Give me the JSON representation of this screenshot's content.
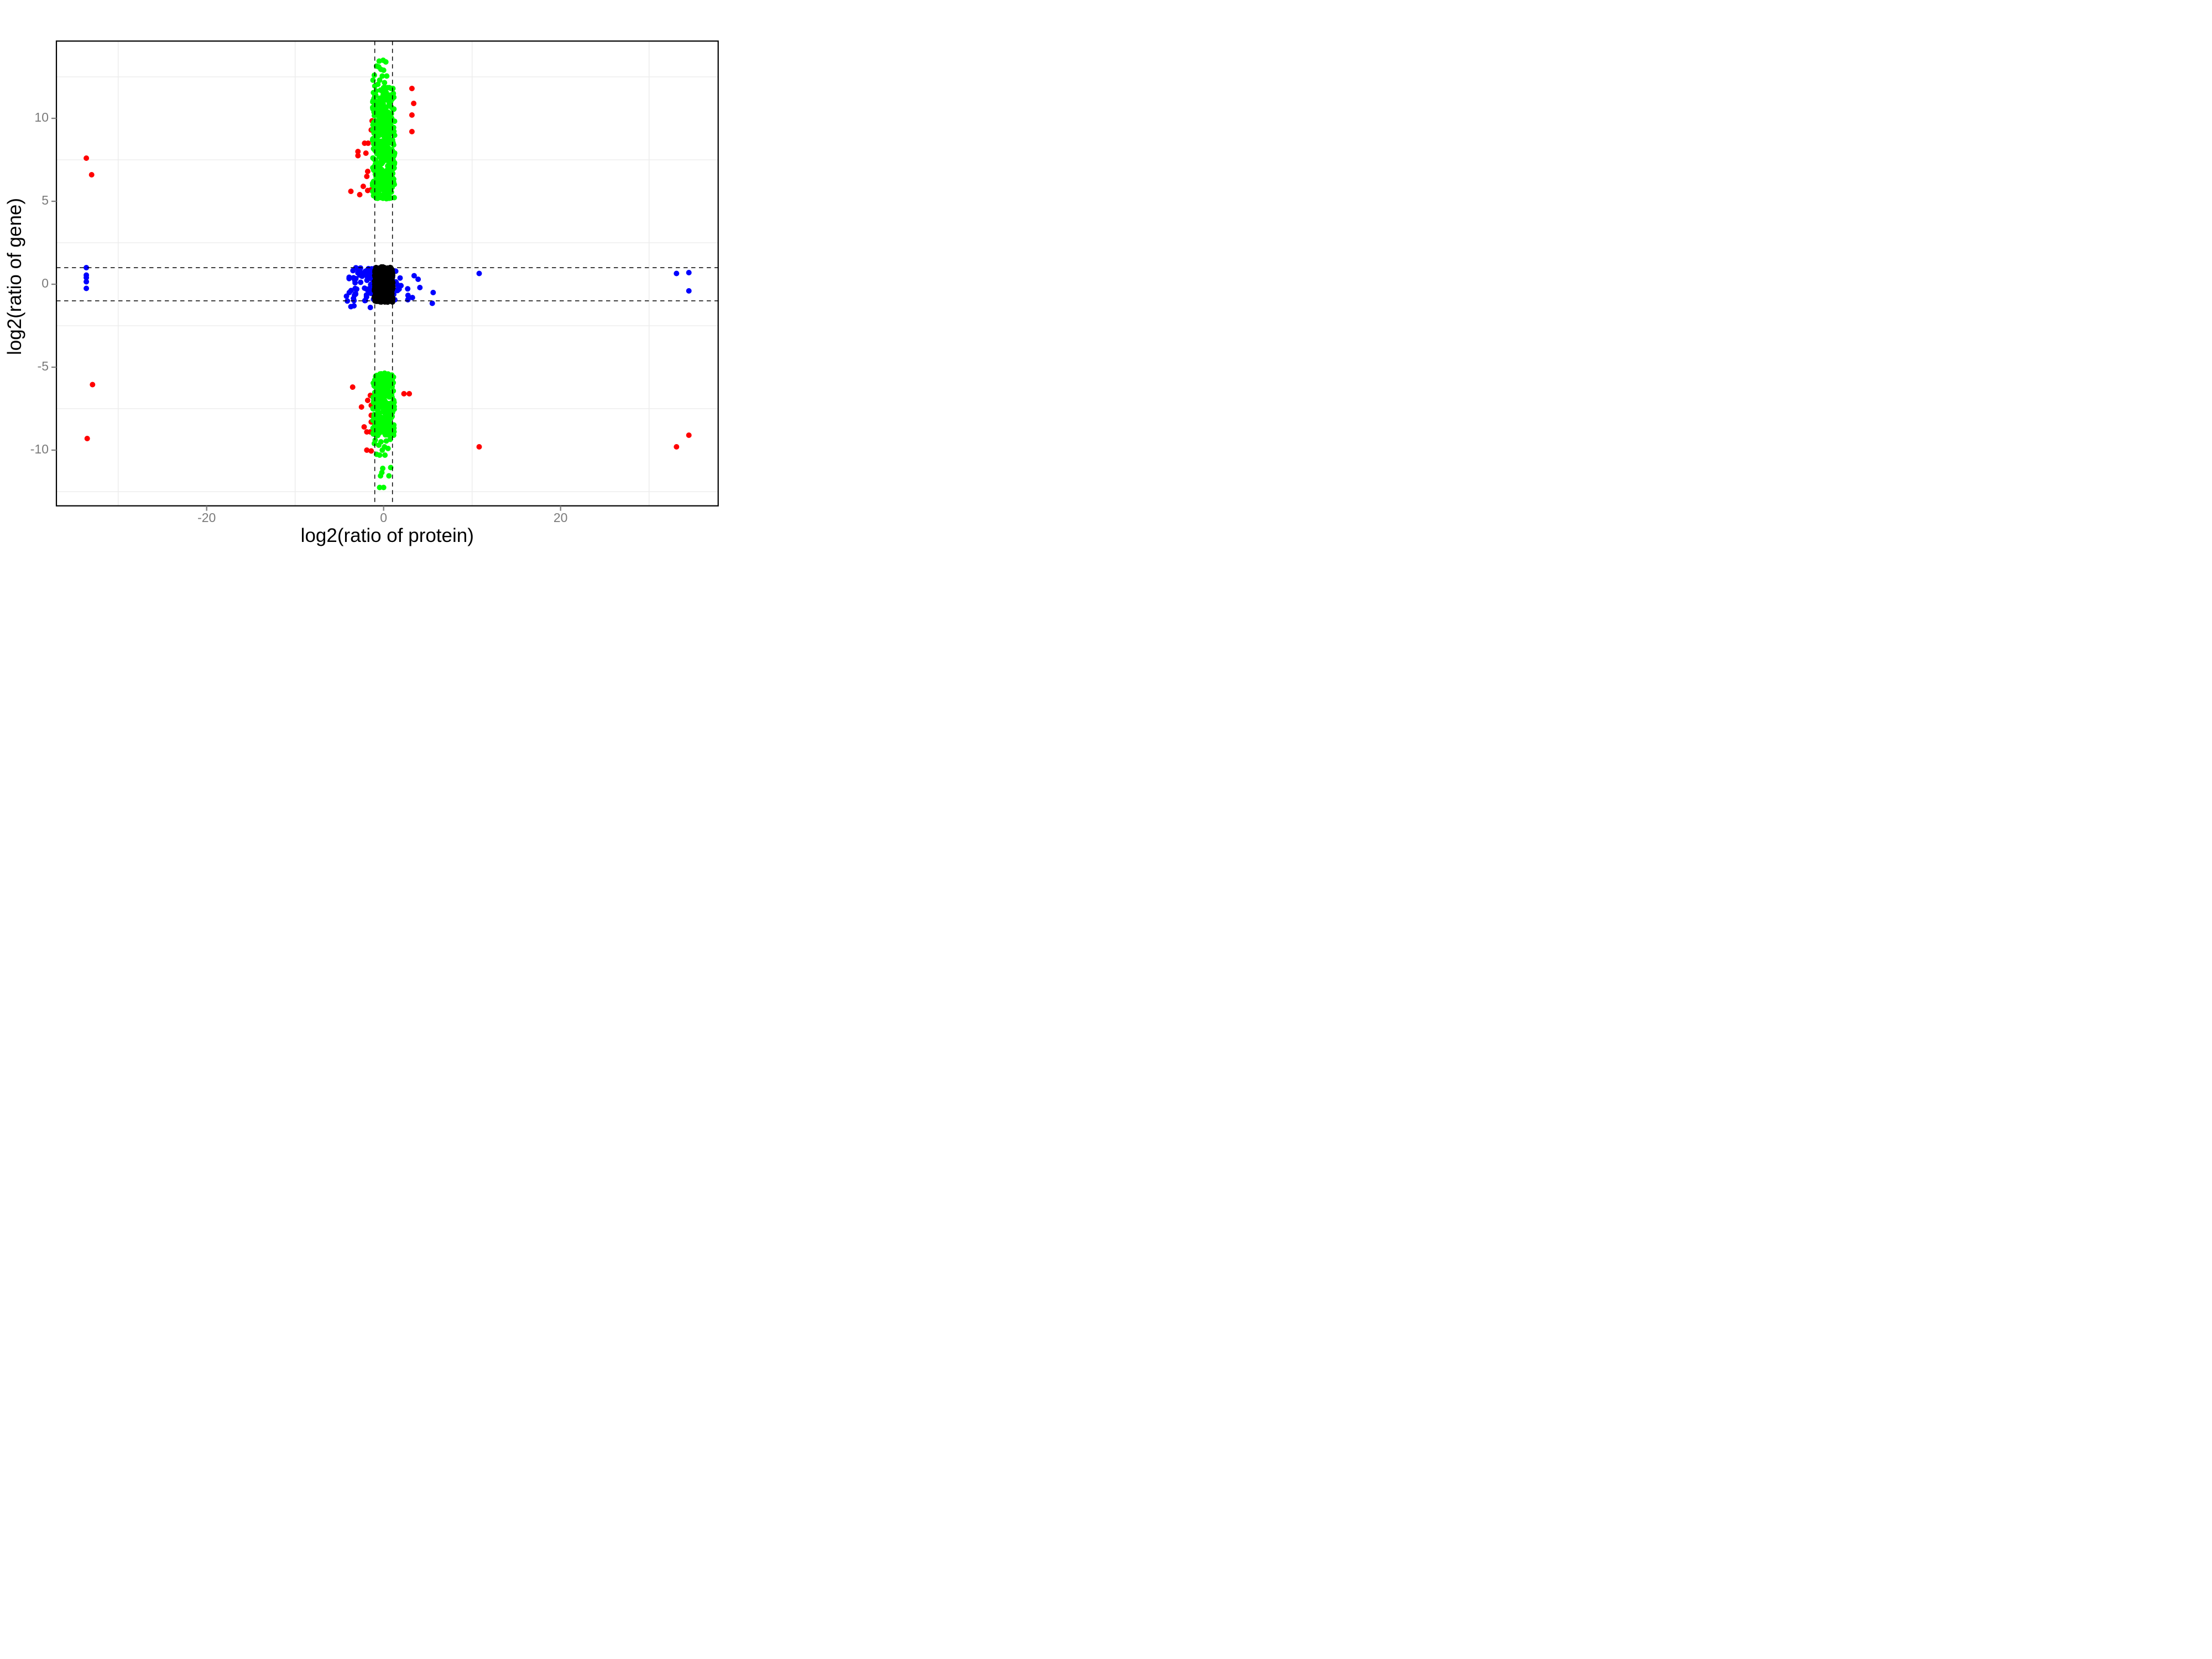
{
  "figure": {
    "background": "#ffffff"
  },
  "axes": {
    "x": {
      "label": "log2(ratio of protein)",
      "tick_values": [
        -20,
        0,
        20
      ],
      "tick_labels": [
        "-20",
        "0",
        "20"
      ],
      "minor_gridlines": [
        -30,
        -10,
        10,
        30
      ],
      "range": [
        -37.0,
        37.9
      ]
    },
    "y": {
      "label": "log2(ratio of gene)",
      "tick_values": [
        10,
        5,
        0,
        -5,
        -10
      ],
      "tick_labels": [
        "10",
        "5",
        "0",
        "-5",
        "-10"
      ],
      "minor_gridlines": [
        12.5,
        7.5,
        2.5,
        -2.5,
        -7.5,
        -12.5
      ],
      "range": [
        -13.35,
        14.65
      ]
    }
  },
  "styles": {
    "panel_border_color": "#000000",
    "gridline_color": "#ededed",
    "tick_color": "#808080",
    "tick_label_color": "#7a7a7a",
    "reference_line_color": "#000000",
    "point_radius": 5,
    "colors": {
      "up_gene": "#00ff00",
      "outlier": "#ff0000",
      "protein_change": "#0000ff",
      "no_change": "#000000"
    }
  },
  "reference_lines": {
    "vertical_x": [
      -1,
      1
    ],
    "horizontal_y": [
      -1,
      1
    ],
    "style": "dashed"
  },
  "chart_data": {
    "type": "scatter",
    "title": "",
    "xlabel": "log2(ratio of protein)",
    "ylabel": "log2(ratio of gene)",
    "xlim": [
      -37.0,
      37.9
    ],
    "ylim": [
      -13.35,
      14.65
    ],
    "grid": "minor-only",
    "legend": "none",
    "series": [
      {
        "name": "red-outliers",
        "color": "#ff0000",
        "z": 1,
        "points": [
          [
            -33.6,
            7.6
          ],
          [
            -33.0,
            6.6
          ],
          [
            -32.9,
            -6.05
          ],
          [
            -33.5,
            -9.3
          ],
          [
            -1.3,
            9.85
          ],
          [
            -1.4,
            9.3
          ],
          [
            -2.15,
            8.5
          ],
          [
            -1.75,
            8.5
          ],
          [
            -2.9,
            8.0
          ],
          [
            -2.9,
            7.75
          ],
          [
            -2.0,
            7.9
          ],
          [
            -1.8,
            6.8
          ],
          [
            -1.9,
            6.5
          ],
          [
            -2.3,
            5.9
          ],
          [
            -1.8,
            5.65
          ],
          [
            -1.4,
            5.7
          ],
          [
            -2.7,
            5.4
          ],
          [
            -3.7,
            5.6
          ],
          [
            3.2,
            11.8
          ],
          [
            3.4,
            10.9
          ],
          [
            3.2,
            10.2
          ],
          [
            3.2,
            9.2
          ],
          [
            -3.5,
            -6.2
          ],
          [
            -1.5,
            -6.7
          ],
          [
            -1.8,
            -7.0
          ],
          [
            -2.5,
            -7.4
          ],
          [
            -1.4,
            -7.3
          ],
          [
            -1.4,
            -7.9
          ],
          [
            -1.4,
            -8.3
          ],
          [
            -2.2,
            -8.6
          ],
          [
            -1.9,
            -8.9
          ],
          [
            -1.5,
            -8.9
          ],
          [
            -1.9,
            -10.0
          ],
          [
            -1.4,
            -10.05
          ],
          [
            2.3,
            -6.6
          ],
          [
            2.9,
            -6.6
          ],
          [
            10.8,
            -9.8
          ],
          [
            34.5,
            -9.1
          ],
          [
            33.1,
            -9.8
          ]
        ]
      },
      {
        "name": "green-upper-tail",
        "color": "#00ff00",
        "z": 2,
        "points": [
          [
            -0.05,
            13.5
          ],
          [
            -0.5,
            13.45
          ],
          [
            0.25,
            13.4
          ],
          [
            -0.8,
            13.15
          ],
          [
            -0.55,
            13.1
          ],
          [
            -0.3,
            12.95
          ],
          [
            0.0,
            12.9
          ],
          [
            -1.05,
            12.6
          ],
          [
            -0.15,
            12.55
          ],
          [
            0.35,
            12.55
          ],
          [
            -1.2,
            12.3
          ],
          [
            -0.45,
            12.3
          ],
          [
            0.1,
            12.15
          ],
          [
            -0.65,
            12.05
          ],
          [
            -1.0,
            11.95
          ],
          [
            0.0,
            11.85
          ],
          [
            0.2,
            11.85
          ],
          [
            0.45,
            11.85
          ],
          [
            0.65,
            11.85
          ],
          [
            0.85,
            11.8
          ],
          [
            1.05,
            11.8
          ],
          [
            -0.35,
            11.7
          ],
          [
            -0.85,
            11.65
          ],
          [
            -1.15,
            11.55
          ],
          [
            1.1,
            11.5
          ],
          [
            0.75,
            11.4
          ],
          [
            0.3,
            11.55
          ],
          [
            -0.1,
            11.6
          ]
        ]
      },
      {
        "name": "green-lower-tail",
        "color": "#00ff00",
        "z": 2,
        "points": [
          [
            -0.95,
            -9.4
          ],
          [
            0.75,
            -9.35
          ],
          [
            -0.3,
            -9.5
          ],
          [
            0.3,
            -9.45
          ],
          [
            -1.05,
            -9.6
          ],
          [
            -0.55,
            -9.7
          ],
          [
            0.1,
            -9.8
          ],
          [
            0.5,
            -9.9
          ],
          [
            -0.15,
            -10.0
          ],
          [
            -0.8,
            -10.25
          ],
          [
            -0.45,
            -10.3
          ],
          [
            0.15,
            -10.3
          ],
          [
            -0.1,
            -11.1
          ],
          [
            0.8,
            -11.05
          ],
          [
            -0.2,
            -11.35
          ],
          [
            -0.35,
            -11.55
          ],
          [
            0.6,
            -11.55
          ],
          [
            -0.45,
            -12.25
          ],
          [
            0.0,
            -12.25
          ]
        ]
      },
      {
        "name": "blue-outliers",
        "color": "#0000ff",
        "z": 3,
        "points": [
          [
            -33.6,
            1.0
          ],
          [
            -33.6,
            0.55
          ],
          [
            -33.6,
            0.4
          ],
          [
            -33.6,
            0.15
          ],
          [
            -33.6,
            -0.25
          ],
          [
            10.8,
            0.65
          ],
          [
            33.1,
            0.65
          ],
          [
            34.5,
            0.7
          ],
          [
            34.5,
            -0.4
          ],
          [
            5.6,
            -0.5
          ],
          [
            5.5,
            -1.15
          ],
          [
            -3.7,
            -1.35
          ],
          [
            -3.35,
            -1.3
          ],
          [
            -1.5,
            -1.4
          ],
          [
            3.9,
            0.3
          ],
          [
            4.1,
            -0.2
          ]
        ]
      }
    ],
    "clusters": [
      {
        "name": "green-upper-band",
        "color": "#00ff00",
        "z": 2,
        "x_range": [
          -1.25,
          1.25
        ],
        "y_range": [
          5.15,
          11.4
        ],
        "n": 420,
        "seed": 11,
        "x_skew": "none"
      },
      {
        "name": "green-lower-band",
        "color": "#00ff00",
        "z": 2,
        "x_range": [
          -1.2,
          1.2
        ],
        "y_range": [
          -9.15,
          -5.35
        ],
        "n": 280,
        "seed": 22,
        "x_skew": "none"
      },
      {
        "name": "blue-left-wing",
        "color": "#0000ff",
        "z": 3,
        "x_range": [
          -4.2,
          -1.0
        ],
        "y_range": [
          -1.02,
          1.0
        ],
        "n": 82,
        "seed": 33,
        "x_skew": "right"
      },
      {
        "name": "blue-right-wing",
        "color": "#0000ff",
        "z": 3,
        "x_range": [
          1.0,
          3.6
        ],
        "y_range": [
          -0.95,
          0.8
        ],
        "n": 20,
        "seed": 44,
        "x_skew": "left"
      },
      {
        "name": "black-center-block",
        "color": "#000000",
        "z": 5,
        "x_range": [
          -1.05,
          1.05
        ],
        "y_range": [
          -1.08,
          1.05
        ],
        "n": 420,
        "seed": 55,
        "x_skew": "none"
      }
    ],
    "draw_order": [
      "red",
      "green",
      "blue",
      "reference-lines",
      "black"
    ]
  }
}
